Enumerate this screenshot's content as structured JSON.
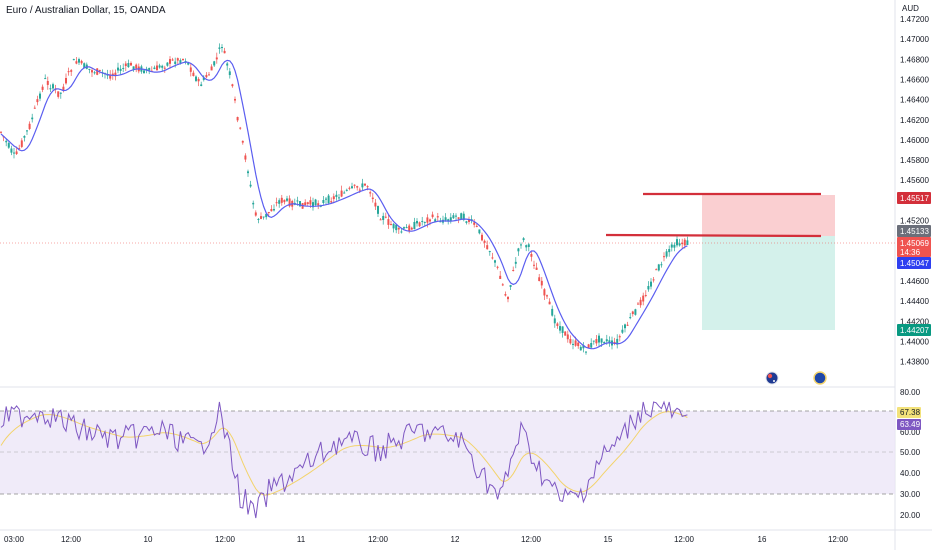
{
  "header": {
    "symbol_title": "Euro / Australian Dollar, 15, OANDA",
    "currency": "AUD"
  },
  "colors": {
    "up": "#26a69a",
    "down": "#ef5350",
    "ma": "#5b5ef0",
    "sl_zone": "#f9c7c9",
    "tp_zone": "#cdeee8",
    "resistance": "#d32f3a",
    "rsi": "#7e57c2",
    "rsi_ma": "#f3d36b",
    "rsi_band": "#ece6f8"
  },
  "price_axis": {
    "labels": [
      "1.47200",
      "1.47000",
      "1.46800",
      "1.46600",
      "1.46400",
      "1.46200",
      "1.46000",
      "1.45800",
      "1.45600",
      "1.45400",
      "1.45200",
      "1.45000",
      "1.44800",
      "1.44600",
      "1.44400",
      "1.44200",
      "1.44000",
      "1.43800"
    ],
    "min": 1.438,
    "max": 1.472
  },
  "price_tags": {
    "stop_loss": "1.45517",
    "entry": "1.45133",
    "last_price": "1.45069",
    "countdown": "14:36",
    "ma_value": "1.45047",
    "take_profit": "1.44207"
  },
  "rsi_axis": {
    "labels": [
      "80.00",
      "60.00",
      "50.00",
      "40.00",
      "30.00",
      "20.00"
    ],
    "value": "67.38",
    "ma_value": "63.49"
  },
  "time_axis": {
    "labels": [
      "03:00",
      "12:00",
      "10",
      "12:00",
      "11",
      "12:00",
      "12",
      "12:00",
      "15",
      "12:00",
      "16",
      "12:00"
    ]
  },
  "events": [
    {
      "name": "australia-flag-icon"
    },
    {
      "name": "eu-flag-icon"
    }
  ],
  "chart_data": {
    "type": "candlestick",
    "series": [
      {
        "name": "EURAUD 15m",
        "description": "price trend approximated"
      }
    ],
    "key_points": {
      "x": [
        "03:00",
        "10",
        "12:00 (10)",
        "11",
        "12",
        "15",
        "12:00 (15)"
      ],
      "close": [
        1.462,
        1.469,
        1.47,
        1.454,
        1.4535,
        1.4405,
        1.4507
      ]
    },
    "ylim": [
      1.438,
      1.472
    ]
  }
}
